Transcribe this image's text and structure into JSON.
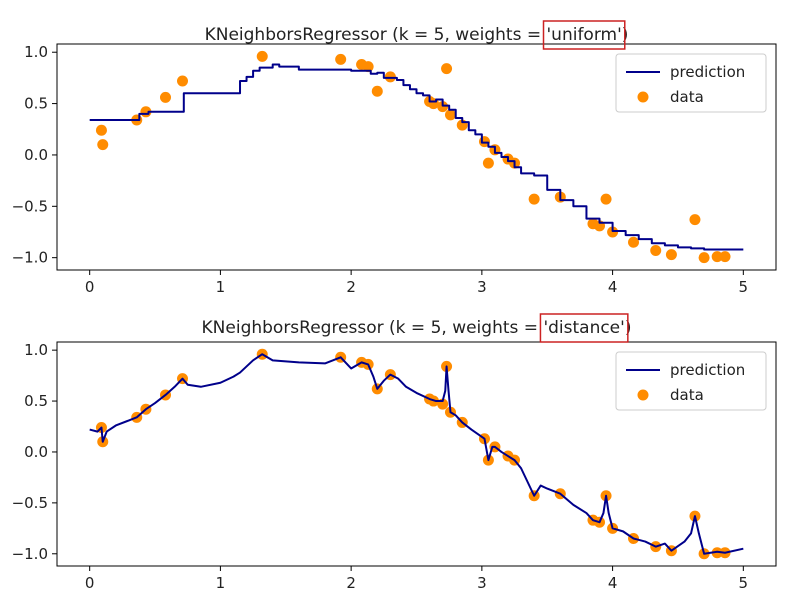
{
  "chart_data": [
    {
      "type": "scatter+line",
      "title_prefix": "KNeighborsRegressor (k = 5, weights = ",
      "title_highlight": "'uniform'",
      "title_suffix": ")",
      "xlim": [
        -0.25,
        5.25
      ],
      "ylim": [
        -1.12,
        1.08
      ],
      "xticks": [
        0,
        1,
        2,
        3,
        4,
        5
      ],
      "yticks": [
        1.0,
        0.5,
        0.0,
        -0.5,
        -1.0
      ],
      "xtick_labels": [
        "0",
        "1",
        "2",
        "3",
        "4",
        "5"
      ],
      "ytick_labels": [
        "1.0",
        "0.5",
        "0.0",
        "−0.5",
        "−1.0"
      ],
      "legend": {
        "position": "top-right",
        "line_label": "prediction",
        "points_label": "data"
      },
      "line_color": "#00008b",
      "point_color": "#ff8c00",
      "highlight_color": "#cc2222",
      "series": [
        {
          "name": "data",
          "kind": "points",
          "x": [
            0.09,
            0.1,
            0.36,
            0.43,
            0.58,
            0.71,
            1.32,
            1.92,
            2.08,
            2.13,
            2.2,
            2.3,
            2.6,
            2.63,
            2.7,
            2.73,
            2.76,
            2.85,
            3.02,
            3.05,
            3.1,
            3.2,
            3.25,
            3.4,
            3.6,
            3.85,
            3.9,
            3.95,
            4.0,
            4.16,
            4.33,
            4.45,
            4.63,
            4.7,
            4.8,
            4.86
          ],
          "y": [
            0.24,
            0.1,
            0.34,
            0.42,
            0.56,
            0.72,
            0.96,
            0.93,
            0.88,
            0.86,
            0.62,
            0.76,
            0.52,
            0.5,
            0.47,
            0.84,
            0.39,
            0.29,
            0.13,
            -0.08,
            0.05,
            -0.04,
            -0.08,
            -0.43,
            -0.41,
            -0.67,
            -0.69,
            -0.43,
            -0.75,
            -0.85,
            -0.93,
            -0.97,
            -0.63,
            -1.0,
            -0.99,
            -0.99
          ]
        },
        {
          "name": "prediction",
          "kind": "line",
          "x": [
            0.0,
            0.2,
            0.25,
            0.35,
            0.38,
            0.45,
            0.5,
            0.7,
            0.72,
            1.0,
            1.12,
            1.15,
            1.2,
            1.25,
            1.3,
            1.4,
            1.45,
            1.55,
            1.6,
            1.8,
            1.85,
            2.0,
            2.1,
            2.15,
            2.2,
            2.25,
            2.35,
            2.4,
            2.45,
            2.5,
            2.55,
            2.6,
            2.65,
            2.7,
            2.75,
            2.8,
            2.85,
            2.9,
            2.95,
            3.0,
            3.05,
            3.1,
            3.15,
            3.2,
            3.25,
            3.3,
            3.4,
            3.5,
            3.6,
            3.7,
            3.8,
            3.9,
            4.0,
            4.1,
            4.2,
            4.3,
            4.4,
            4.5,
            4.6,
            4.7,
            4.8,
            5.0
          ],
          "y": [
            0.34,
            0.34,
            0.34,
            0.34,
            0.4,
            0.42,
            0.42,
            0.42,
            0.6,
            0.6,
            0.6,
            0.72,
            0.76,
            0.82,
            0.85,
            0.88,
            0.86,
            0.86,
            0.83,
            0.83,
            0.83,
            0.82,
            0.82,
            0.79,
            0.8,
            0.75,
            0.73,
            0.68,
            0.64,
            0.6,
            0.58,
            0.52,
            0.54,
            0.48,
            0.44,
            0.36,
            0.32,
            0.24,
            0.2,
            0.12,
            0.08,
            0.02,
            -0.02,
            -0.06,
            -0.12,
            -0.18,
            -0.2,
            -0.34,
            -0.44,
            -0.5,
            -0.62,
            -0.66,
            -0.74,
            -0.78,
            -0.82,
            -0.86,
            -0.88,
            -0.9,
            -0.91,
            -0.92,
            -0.92,
            -0.92
          ]
        }
      ]
    },
    {
      "type": "scatter+line",
      "title_prefix": "KNeighborsRegressor (k = 5, weights = ",
      "title_highlight": "'distance'",
      "title_suffix": ")",
      "xlim": [
        -0.25,
        5.25
      ],
      "ylim": [
        -1.12,
        1.08
      ],
      "xticks": [
        0,
        1,
        2,
        3,
        4,
        5
      ],
      "yticks": [
        1.0,
        0.5,
        0.0,
        -0.5,
        -1.0
      ],
      "xtick_labels": [
        "0",
        "1",
        "2",
        "3",
        "4",
        "5"
      ],
      "ytick_labels": [
        "1.0",
        "0.5",
        "0.0",
        "−0.5",
        "−1.0"
      ],
      "legend": {
        "position": "top-right",
        "line_label": "prediction",
        "points_label": "data"
      },
      "line_color": "#00008b",
      "point_color": "#ff8c00",
      "highlight_color": "#cc2222",
      "series": [
        {
          "name": "data",
          "kind": "points",
          "x": [
            0.09,
            0.1,
            0.36,
            0.43,
            0.58,
            0.71,
            1.32,
            1.92,
            2.08,
            2.13,
            2.2,
            2.3,
            2.6,
            2.63,
            2.7,
            2.73,
            2.76,
            2.85,
            3.02,
            3.05,
            3.1,
            3.2,
            3.25,
            3.4,
            3.6,
            3.85,
            3.9,
            3.95,
            4.0,
            4.16,
            4.33,
            4.45,
            4.63,
            4.7,
            4.8,
            4.86
          ],
          "y": [
            0.24,
            0.1,
            0.34,
            0.42,
            0.56,
            0.72,
            0.96,
            0.93,
            0.88,
            0.86,
            0.62,
            0.76,
            0.52,
            0.5,
            0.47,
            0.84,
            0.39,
            0.29,
            0.13,
            -0.08,
            0.05,
            -0.04,
            -0.08,
            -0.43,
            -0.41,
            -0.67,
            -0.69,
            -0.43,
            -0.75,
            -0.85,
            -0.93,
            -0.97,
            -0.63,
            -1.0,
            -0.99,
            -0.99
          ]
        },
        {
          "name": "prediction",
          "kind": "line",
          "x": [
            0.0,
            0.06,
            0.09,
            0.1,
            0.13,
            0.2,
            0.3,
            0.36,
            0.43,
            0.5,
            0.58,
            0.65,
            0.71,
            0.75,
            0.85,
            1.0,
            1.1,
            1.15,
            1.2,
            1.25,
            1.32,
            1.4,
            1.6,
            1.8,
            1.92,
            2.0,
            2.08,
            2.13,
            2.17,
            2.2,
            2.25,
            2.3,
            2.36,
            2.42,
            2.5,
            2.6,
            2.65,
            2.7,
            2.72,
            2.73,
            2.745,
            2.76,
            2.8,
            2.85,
            2.92,
            3.02,
            3.05,
            3.08,
            3.1,
            3.15,
            3.2,
            3.25,
            3.3,
            3.4,
            3.45,
            3.5,
            3.6,
            3.7,
            3.8,
            3.85,
            3.9,
            3.93,
            3.95,
            3.97,
            4.0,
            4.08,
            4.16,
            4.25,
            4.33,
            4.4,
            4.45,
            4.55,
            4.6,
            4.63,
            4.66,
            4.7,
            4.8,
            4.86,
            5.0
          ],
          "y": [
            0.22,
            0.2,
            0.24,
            0.1,
            0.2,
            0.26,
            0.31,
            0.34,
            0.42,
            0.48,
            0.56,
            0.64,
            0.72,
            0.66,
            0.64,
            0.68,
            0.74,
            0.78,
            0.84,
            0.9,
            0.96,
            0.9,
            0.88,
            0.87,
            0.93,
            0.82,
            0.88,
            0.86,
            0.74,
            0.62,
            0.7,
            0.76,
            0.72,
            0.64,
            0.58,
            0.52,
            0.5,
            0.5,
            0.6,
            0.84,
            0.6,
            0.39,
            0.36,
            0.29,
            0.22,
            0.13,
            -0.08,
            0.05,
            0.05,
            0.0,
            -0.04,
            -0.08,
            -0.16,
            -0.43,
            -0.33,
            -0.36,
            -0.41,
            -0.52,
            -0.6,
            -0.67,
            -0.69,
            -0.6,
            -0.43,
            -0.6,
            -0.75,
            -0.78,
            -0.85,
            -0.88,
            -0.93,
            -0.9,
            -0.97,
            -0.88,
            -0.8,
            -0.63,
            -0.8,
            -1.0,
            -0.98,
            -0.99,
            -0.95
          ]
        }
      ]
    }
  ]
}
